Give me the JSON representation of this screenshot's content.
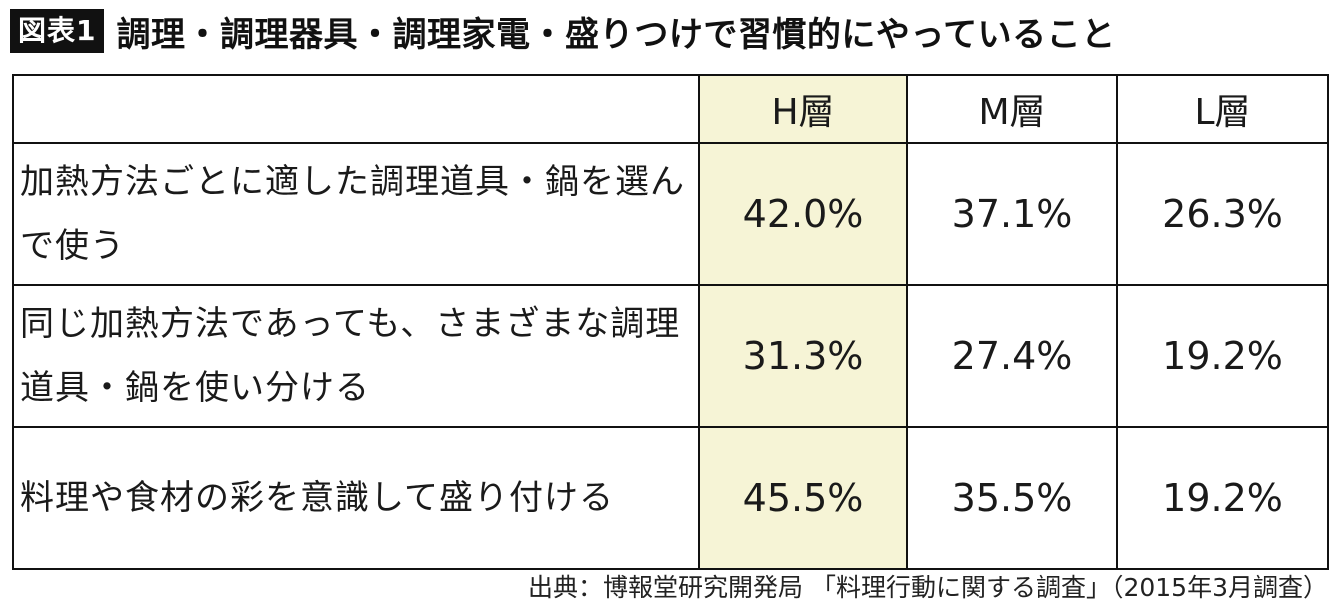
{
  "header": {
    "badge": "図表1",
    "title": "調理・調理器具・調理家電・盛りつけで習慣的にやっていること"
  },
  "table": {
    "columns": [
      "",
      "H層",
      "M層",
      "L層"
    ],
    "rows": [
      {
        "label": "加熱方法ごとに適した調理道具・鍋を選んで使う",
        "values": [
          "42.0%",
          "37.1%",
          "26.3%"
        ]
      },
      {
        "label": "同じ加熱方法であっても、さまざまな調理道具・鍋を使い分ける",
        "values": [
          "31.3%",
          "27.4%",
          "19.2%"
        ]
      },
      {
        "label": "料理や食材の彩を意識して盛り付ける",
        "values": [
          "45.5%",
          "35.5%",
          "19.2%"
        ]
      }
    ],
    "highlight_color": "#f6f4d6"
  },
  "source": "出典：博報堂研究開発局 「料理行動に関する調査」（2015年3月調査）"
}
